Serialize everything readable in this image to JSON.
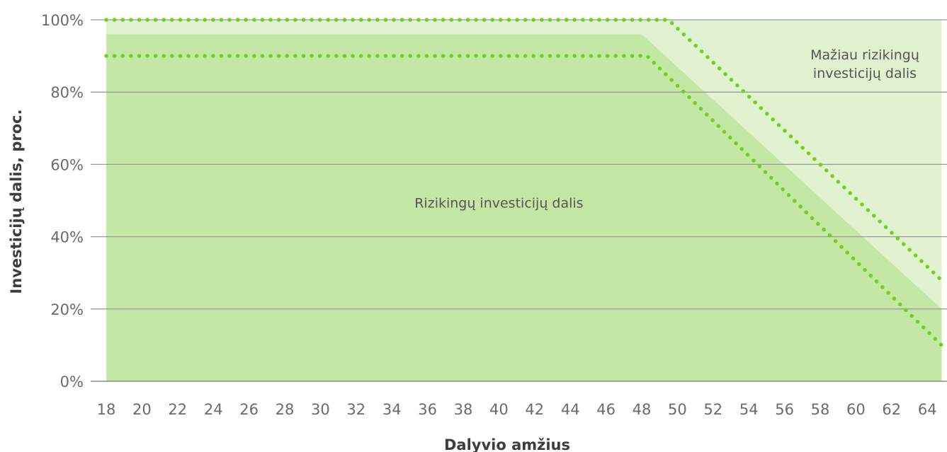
{
  "chart_data": {
    "type": "area",
    "title": "",
    "xlabel": "Dalyvio amžius",
    "ylabel": "Investicijų dalis, proc.",
    "x_ticks": [
      "18",
      "20",
      "22",
      "24",
      "26",
      "28",
      "30",
      "32",
      "34",
      "36",
      "38",
      "40",
      "42",
      "44",
      "46",
      "48",
      "50",
      "52",
      "54",
      "56",
      "58",
      "60",
      "62",
      "64"
    ],
    "y_ticks": [
      "0%",
      "20%",
      "40%",
      "60%",
      "80%",
      "100%"
    ],
    "xlim": [
      18,
      65
    ],
    "ylim": [
      0,
      100
    ],
    "grid": true,
    "series": [
      {
        "name": "Rizikingų investicijų dalis",
        "kind": "area",
        "color": "#c5e7a5",
        "x": [
          18,
          48,
          64.8
        ],
        "y": [
          96,
          96,
          20
        ]
      },
      {
        "name": "Mažiau rizikingų investicijų dalis",
        "kind": "area",
        "color": "#e1f2d0",
        "x": [
          18,
          64.8
        ],
        "y": [
          100,
          100
        ]
      },
      {
        "kind": "dotted-line",
        "color": "#6ed21e",
        "x": [
          18,
          49.5,
          65
        ],
        "y": [
          100,
          100,
          27
        ]
      },
      {
        "kind": "dotted-line",
        "color": "#6ed21e",
        "x": [
          18,
          48.3,
          65
        ],
        "y": [
          90,
          90,
          9
        ]
      }
    ],
    "annotations": [
      {
        "text": "Rizikingų investicijų dalis",
        "x": 40,
        "y": 48
      },
      {
        "text_lines": [
          "Mažiau rizikingų",
          "investicijų dalis"
        ],
        "x": 60.5,
        "y": 89
      }
    ]
  }
}
